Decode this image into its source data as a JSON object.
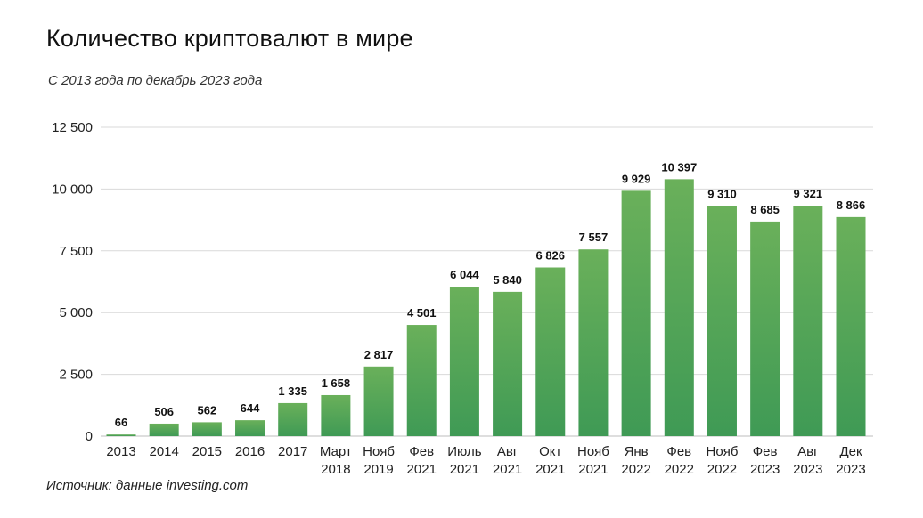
{
  "header": {
    "title": "Количество криптовалют в мире",
    "subtitle": "С 2013 года по декабрь 2023 года"
  },
  "footer": {
    "source": "Источник: данные investing.com"
  },
  "colors": {
    "bar_top": "#6ab05a",
    "bar_bottom": "#3f9a55",
    "grid": "#d9d9d9",
    "baseline": "#bdbdbd"
  },
  "chart_data": {
    "type": "bar",
    "title": "Количество криптовалют в мире",
    "subtitle": "С 2013 года по декабрь 2023 года",
    "categories": [
      [
        "2013"
      ],
      [
        "2014"
      ],
      [
        "2015"
      ],
      [
        "2016"
      ],
      [
        "2017"
      ],
      [
        "Март",
        "2018"
      ],
      [
        "Нояб",
        "2019"
      ],
      [
        "Фев",
        "2021"
      ],
      [
        "Июль",
        "2021"
      ],
      [
        "Авг",
        "2021"
      ],
      [
        "Окт",
        "2021"
      ],
      [
        "Нояб",
        "2021"
      ],
      [
        "Янв",
        "2022"
      ],
      [
        "Фев",
        "2022"
      ],
      [
        "Нояб",
        "2022"
      ],
      [
        "Фев",
        "2023"
      ],
      [
        "Авг",
        "2023"
      ],
      [
        "Дек",
        "2023"
      ]
    ],
    "values": [
      66,
      506,
      562,
      644,
      1335,
      1658,
      2817,
      4501,
      6044,
      5840,
      6826,
      7557,
      9929,
      10397,
      9310,
      8685,
      9321,
      8866
    ],
    "value_labels": [
      "66",
      "506",
      "562",
      "644",
      "1 335",
      "1 658",
      "2 817",
      "4 501",
      "6 044",
      "5 840",
      "6 826",
      "7 557",
      "9 929",
      "10 397",
      "9 310",
      "8 685",
      "9 321",
      "8 866"
    ],
    "yticks": [
      0,
      2500,
      5000,
      7500,
      10000,
      12500
    ],
    "ytick_labels": [
      "0",
      "2 500",
      "5 000",
      "7 500",
      "10 000",
      "12 500"
    ],
    "ylim": [
      0,
      12500
    ],
    "grid": true,
    "legend": "none"
  }
}
